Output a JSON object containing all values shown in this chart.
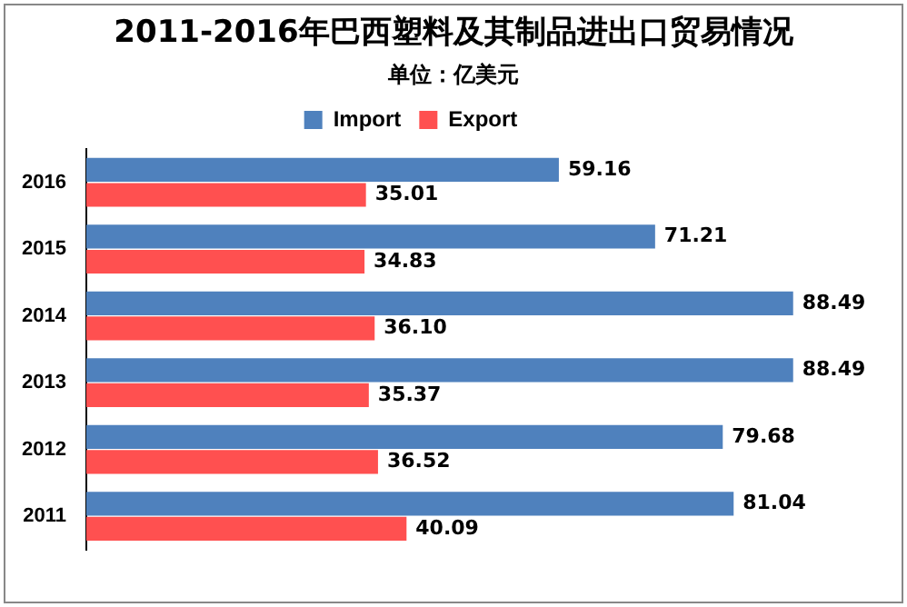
{
  "chart_data": {
    "type": "bar",
    "orientation": "horizontal",
    "title": "2011-2016年巴西塑料及其制品进出口贸易情况",
    "subtitle": "单位：亿美元",
    "categories": [
      "2016",
      "2015",
      "2014",
      "2013",
      "2012",
      "2011"
    ],
    "series": [
      {
        "name": "Import",
        "color": "#4f81bd",
        "values": [
          59.16,
          71.21,
          88.49,
          88.49,
          79.68,
          81.04
        ],
        "value_labels": [
          "59.16",
          "71.21",
          "88.49",
          "88.49",
          "79.68",
          "81.04"
        ]
      },
      {
        "name": "Export",
        "color": "#ff5050",
        "values": [
          35.01,
          34.83,
          36.1,
          35.37,
          36.52,
          40.09
        ],
        "value_labels": [
          "35.01",
          "34.83",
          "36.10",
          "35.37",
          "36.52",
          "40.09"
        ]
      }
    ],
    "legend": "top",
    "tick_labels": "y"
  }
}
